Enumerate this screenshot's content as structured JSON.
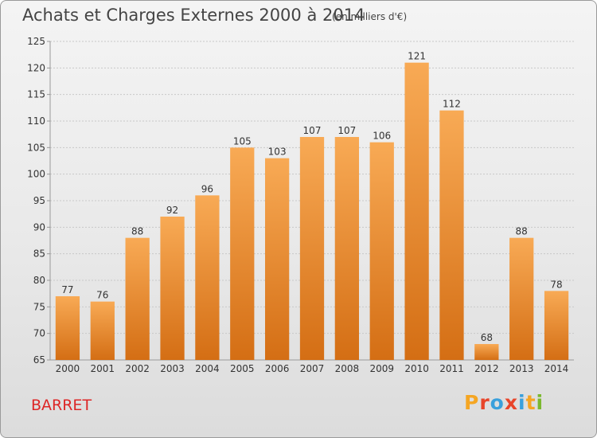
{
  "header": {
    "title": "Achats et Charges Externes 2000 à 2014",
    "unit": "(en milliers d'€)"
  },
  "footer": {
    "commune": "BARRET",
    "logo": {
      "letters": [
        "P",
        "r",
        "o",
        "x",
        "i",
        "t",
        "i"
      ],
      "colors": [
        "#f5a623",
        "#e8452a",
        "#3aa0dc",
        "#e8452a",
        "#3aa0dc",
        "#f5a623",
        "#7ab82e"
      ]
    }
  },
  "colors": {
    "bar_light": "#f8aa55",
    "bar_dark": "#d46e14",
    "commune": "#dd2626"
  },
  "chart_data": {
    "type": "bar",
    "title": "Achats et Charges Externes 2000 à 2014",
    "categories": [
      "2000",
      "2001",
      "2002",
      "2003",
      "2004",
      "2005",
      "2006",
      "2007",
      "2008",
      "2009",
      "2010",
      "2011",
      "2012",
      "2013",
      "2014"
    ],
    "values": [
      77,
      76,
      88,
      92,
      96,
      105,
      103,
      107,
      107,
      106,
      121,
      112,
      68,
      88,
      78
    ],
    "ylim": [
      65,
      125
    ],
    "yticks": [
      "65",
      "70",
      "75",
      "80",
      "85",
      "90",
      "95",
      "100",
      "105",
      "110",
      "115",
      "120",
      "125"
    ],
    "grid": true,
    "xlabel": "",
    "ylabel": ""
  }
}
